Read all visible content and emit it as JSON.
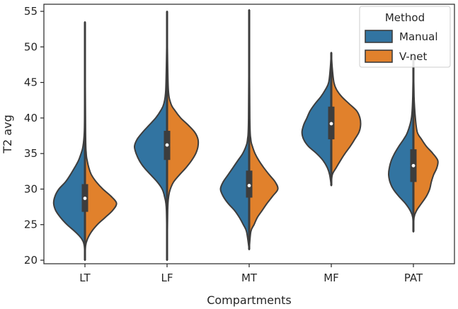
{
  "chart_data": {
    "type": "violin",
    "split": true,
    "xlabel": "Compartments",
    "ylabel": "T2 avg",
    "categories": [
      "LT",
      "LF",
      "MT",
      "MF",
      "PAT"
    ],
    "ylim": [
      19.5,
      56
    ],
    "yticks": [
      20,
      25,
      30,
      35,
      40,
      45,
      50,
      55
    ],
    "grid": false,
    "legend": {
      "title": "Method",
      "position": "top-right"
    },
    "series": [
      {
        "name": "Manual",
        "color": "#3274a1",
        "violins": [
          {
            "range": [
              20,
              53.5
            ],
            "median": 28.7,
            "q1": 26.8,
            "q3": 30.7,
            "profile": [
              [
                20,
                0
              ],
              [
                22,
                0.02
              ],
              [
                23,
                0.1
              ],
              [
                24,
                0.3
              ],
              [
                25,
                0.55
              ],
              [
                26,
                0.75
              ],
              [
                27,
                0.9
              ],
              [
                28,
                0.96
              ],
              [
                29,
                0.92
              ],
              [
                30,
                0.8
              ],
              [
                31,
                0.6
              ],
              [
                32,
                0.45
              ],
              [
                33,
                0.32
              ],
              [
                34,
                0.2
              ],
              [
                35,
                0.12
              ],
              [
                36,
                0.06
              ],
              [
                38,
                0.02
              ],
              [
                42,
                0.01
              ],
              [
                53.5,
                0
              ]
            ]
          },
          {
            "range": [
              20,
              55
            ],
            "median": 36.2,
            "q1": 34.1,
            "q3": 38.2,
            "profile": [
              [
                20,
                0
              ],
              [
                27,
                0.02
              ],
              [
                29,
                0.08
              ],
              [
                30,
                0.15
              ],
              [
                31,
                0.3
              ],
              [
                32,
                0.5
              ],
              [
                33,
                0.7
              ],
              [
                34,
                0.85
              ],
              [
                35,
                0.95
              ],
              [
                36,
                1.0
              ],
              [
                37,
                0.92
              ],
              [
                38,
                0.75
              ],
              [
                39,
                0.55
              ],
              [
                40,
                0.35
              ],
              [
                41,
                0.2
              ],
              [
                42,
                0.1
              ],
              [
                44,
                0.04
              ],
              [
                50,
                0.01
              ],
              [
                55,
                0
              ]
            ]
          },
          {
            "range": [
              21.5,
              55.2
            ],
            "median": 30.5,
            "q1": 28.8,
            "q3": 32.6,
            "profile": [
              [
                21.5,
                0
              ],
              [
                24,
                0.08
              ],
              [
                25,
                0.18
              ],
              [
                26,
                0.3
              ],
              [
                27,
                0.45
              ],
              [
                28,
                0.65
              ],
              [
                29,
                0.8
              ],
              [
                30,
                0.88
              ],
              [
                31,
                0.8
              ],
              [
                32,
                0.65
              ],
              [
                33,
                0.5
              ],
              [
                34,
                0.35
              ],
              [
                35,
                0.2
              ],
              [
                36,
                0.1
              ],
              [
                37,
                0.05
              ],
              [
                40,
                0.02
              ],
              [
                55.2,
                0
              ]
            ]
          },
          {
            "range": [
              30.5,
              49.2
            ],
            "median": 39.2,
            "q1": 37.0,
            "q3": 41.6,
            "profile": [
              [
                30.5,
                0
              ],
              [
                32,
                0.05
              ],
              [
                33,
                0.12
              ],
              [
                34,
                0.25
              ],
              [
                35,
                0.45
              ],
              [
                36,
                0.7
              ],
              [
                37,
                0.85
              ],
              [
                38,
                0.9
              ],
              [
                39,
                0.85
              ],
              [
                40,
                0.75
              ],
              [
                41,
                0.65
              ],
              [
                42,
                0.5
              ],
              [
                43,
                0.32
              ],
              [
                44,
                0.18
              ],
              [
                45,
                0.08
              ],
              [
                47,
                0.03
              ],
              [
                49.2,
                0
              ]
            ]
          },
          {
            "range": [
              24,
              48.5
            ],
            "median": 33.3,
            "q1": 31.0,
            "q3": 35.6,
            "profile": [
              [
                24,
                0
              ],
              [
                26,
                0.02
              ],
              [
                27,
                0.1
              ],
              [
                28,
                0.25
              ],
              [
                29,
                0.45
              ],
              [
                30,
                0.62
              ],
              [
                31,
                0.72
              ],
              [
                32,
                0.76
              ],
              [
                33,
                0.74
              ],
              [
                34,
                0.68
              ],
              [
                35,
                0.58
              ],
              [
                36,
                0.45
              ],
              [
                37,
                0.3
              ],
              [
                38,
                0.18
              ],
              [
                40,
                0.06
              ],
              [
                43,
                0.02
              ],
              [
                48.5,
                0
              ]
            ]
          }
        ]
      },
      {
        "name": "V-net",
        "color": "#e1812c",
        "violins": [
          {
            "range": [
              20,
              53.5
            ],
            "median": 28.7,
            "q1": 26.8,
            "q3": 30.7,
            "profile": [
              [
                20,
                0
              ],
              [
                22,
                0.02
              ],
              [
                23,
                0.08
              ],
              [
                24,
                0.2
              ],
              [
                25,
                0.38
              ],
              [
                26,
                0.62
              ],
              [
                27,
                0.85
              ],
              [
                28,
                0.97
              ],
              [
                29,
                0.8
              ],
              [
                30,
                0.55
              ],
              [
                31,
                0.35
              ],
              [
                32,
                0.2
              ],
              [
                33,
                0.12
              ],
              [
                34,
                0.07
              ],
              [
                35,
                0.04
              ],
              [
                38,
                0.02
              ],
              [
                53.5,
                0
              ]
            ]
          },
          {
            "range": [
              20,
              55
            ],
            "median": 36.2,
            "q1": 34.1,
            "q3": 38.2,
            "profile": [
              [
                20,
                0
              ],
              [
                27,
                0.02
              ],
              [
                29,
                0.05
              ],
              [
                30,
                0.1
              ],
              [
                31,
                0.2
              ],
              [
                32,
                0.38
              ],
              [
                33,
                0.58
              ],
              [
                34,
                0.75
              ],
              [
                35,
                0.88
              ],
              [
                36,
                0.95
              ],
              [
                37,
                0.95
              ],
              [
                38,
                0.85
              ],
              [
                39,
                0.65
              ],
              [
                40,
                0.42
              ],
              [
                41,
                0.25
              ],
              [
                42,
                0.12
              ],
              [
                44,
                0.04
              ],
              [
                50,
                0.01
              ],
              [
                55,
                0
              ]
            ]
          },
          {
            "range": [
              21.5,
              55.2
            ],
            "median": 30.5,
            "q1": 28.8,
            "q3": 32.6,
            "profile": [
              [
                21.5,
                0
              ],
              [
                24,
                0.05
              ],
              [
                25,
                0.15
              ],
              [
                26,
                0.25
              ],
              [
                27,
                0.4
              ],
              [
                28,
                0.55
              ],
              [
                29,
                0.72
              ],
              [
                30,
                0.88
              ],
              [
                31,
                0.8
              ],
              [
                32,
                0.62
              ],
              [
                33,
                0.45
              ],
              [
                34,
                0.3
              ],
              [
                35,
                0.18
              ],
              [
                36,
                0.1
              ],
              [
                37,
                0.05
              ],
              [
                40,
                0.02
              ],
              [
                55.2,
                0
              ]
            ]
          },
          {
            "range": [
              30.5,
              49.2
            ],
            "median": 39.2,
            "q1": 37.0,
            "q3": 41.6,
            "profile": [
              [
                30.5,
                0
              ],
              [
                32,
                0.03
              ],
              [
                33,
                0.15
              ],
              [
                34,
                0.28
              ],
              [
                35,
                0.42
              ],
              [
                36,
                0.58
              ],
              [
                37,
                0.72
              ],
              [
                38,
                0.85
              ],
              [
                39,
                0.9
              ],
              [
                40,
                0.88
              ],
              [
                41,
                0.78
              ],
              [
                42,
                0.55
              ],
              [
                43,
                0.32
              ],
              [
                44,
                0.16
              ],
              [
                45,
                0.08
              ],
              [
                47,
                0.03
              ],
              [
                49.2,
                0
              ]
            ]
          },
          {
            "range": [
              24,
              48.5
            ],
            "median": 33.3,
            "q1": 31.0,
            "q3": 35.6,
            "profile": [
              [
                24,
                0
              ],
              [
                26,
                0.02
              ],
              [
                27,
                0.1
              ],
              [
                28,
                0.25
              ],
              [
                29,
                0.4
              ],
              [
                30,
                0.5
              ],
              [
                31,
                0.55
              ],
              [
                32,
                0.62
              ],
              [
                33,
                0.72
              ],
              [
                34,
                0.75
              ],
              [
                35,
                0.6
              ],
              [
                36,
                0.4
              ],
              [
                37,
                0.25
              ],
              [
                38,
                0.12
              ],
              [
                40,
                0.06
              ],
              [
                43,
                0.02
              ],
              [
                48.5,
                0
              ]
            ]
          }
        ]
      }
    ]
  }
}
